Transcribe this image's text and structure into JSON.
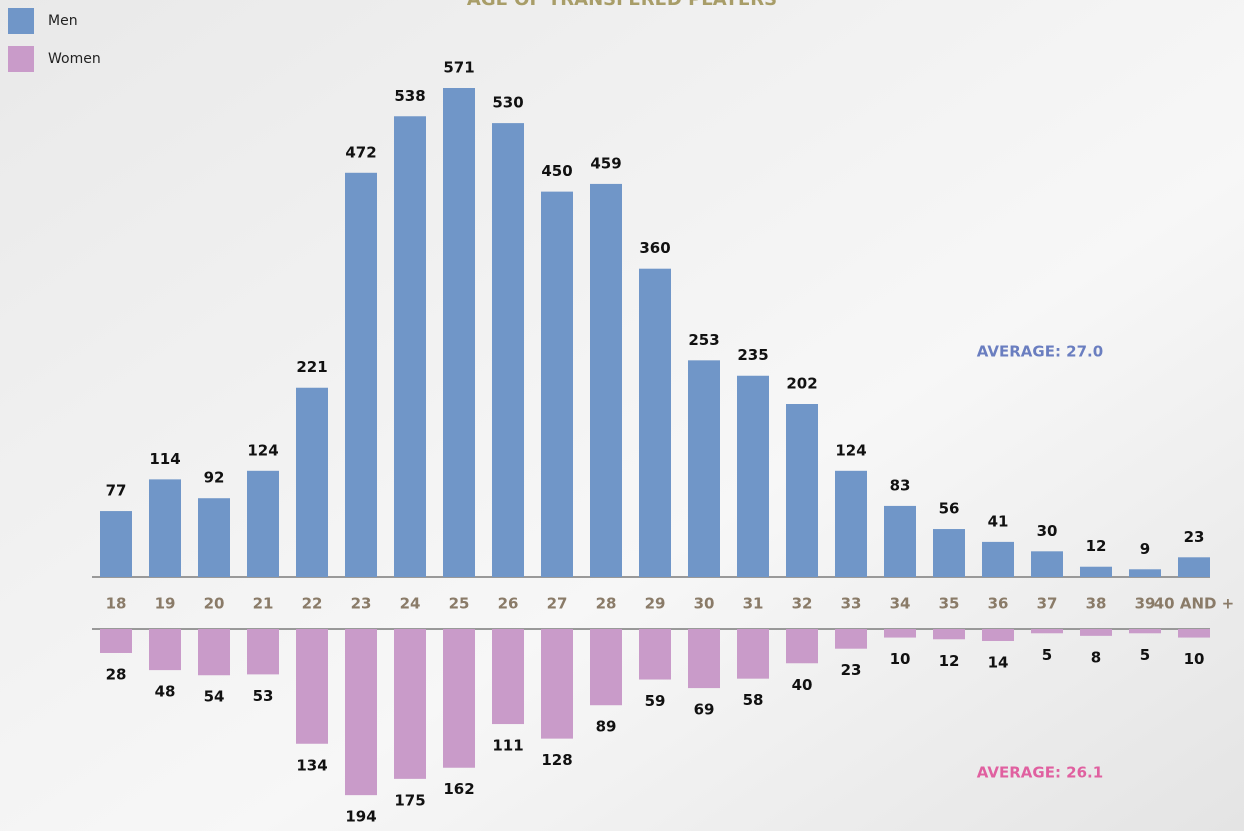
{
  "chart_data": {
    "type": "mirrored-bar",
    "title": "AGE OF TRANSFERED PLAYERS",
    "categories": [
      "18",
      "19",
      "20",
      "21",
      "22",
      "23",
      "24",
      "25",
      "26",
      "27",
      "28",
      "29",
      "30",
      "31",
      "32",
      "33",
      "34",
      "35",
      "36",
      "37",
      "38",
      "39",
      "40 AND +"
    ],
    "series": [
      {
        "name": "Men",
        "color": "#7096c8",
        "values": [
          77,
          114,
          92,
          124,
          221,
          472,
          538,
          571,
          530,
          450,
          459,
          360,
          253,
          235,
          202,
          124,
          83,
          56,
          41,
          30,
          12,
          9,
          23
        ]
      },
      {
        "name": "Women",
        "color": "#c99bc9",
        "values": [
          28,
          48,
          54,
          53,
          134,
          194,
          175,
          162,
          111,
          128,
          89,
          59,
          69,
          58,
          40,
          23,
          10,
          12,
          14,
          5,
          8,
          5,
          10
        ]
      }
    ],
    "annotations": [
      "AVERAGE: 27.0",
      "AVERAGE: 26.1"
    ],
    "legend": "top-left"
  }
}
